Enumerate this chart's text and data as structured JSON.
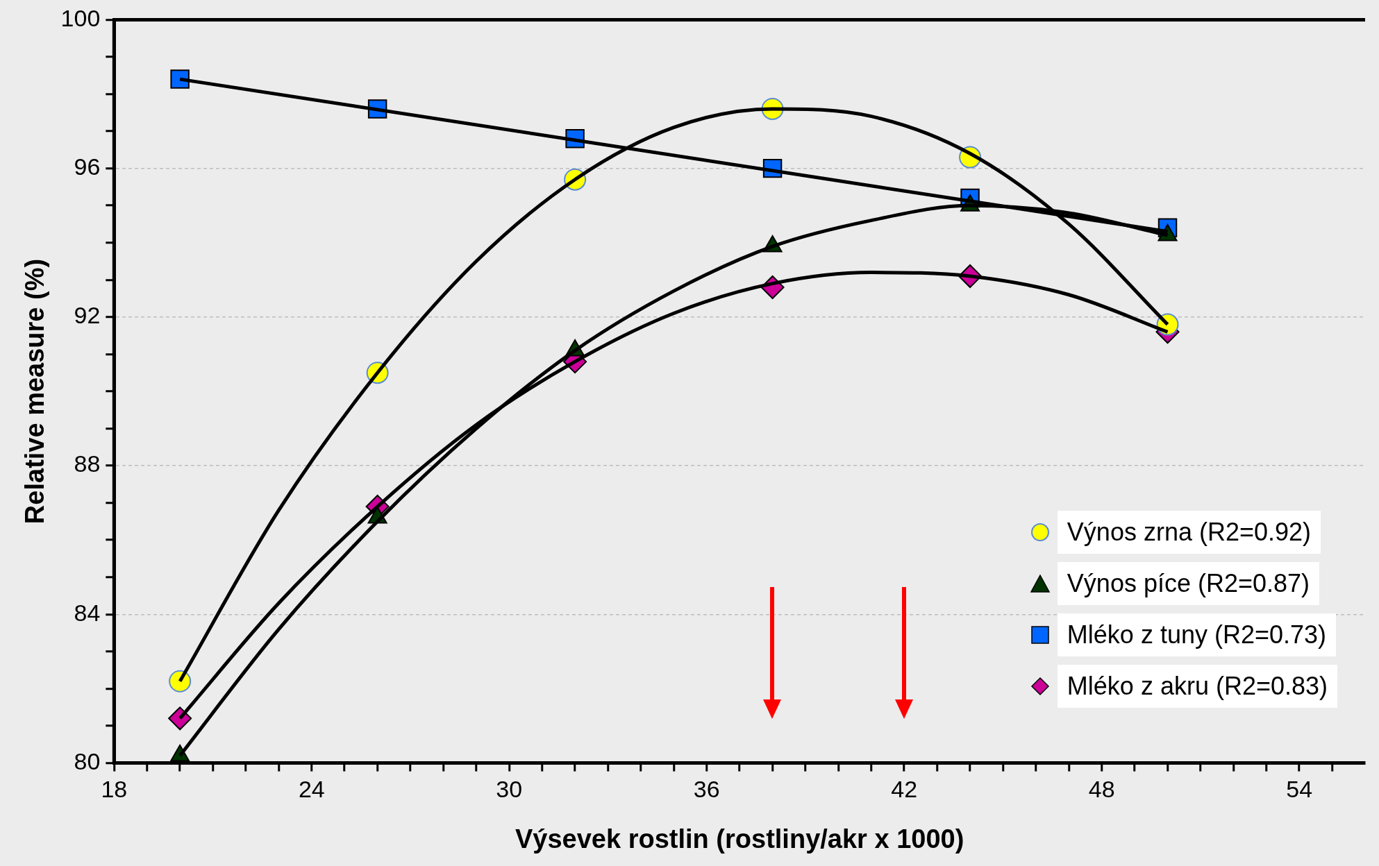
{
  "chart_data": {
    "type": "scatter",
    "xlabel": "Výsevek rostlin (rostliny/akr x 1000)",
    "ylabel": "Relative measure (%)",
    "xlim": [
      18,
      56
    ],
    "xticks": [
      18,
      {
        "value": 19,
        "label": null
      },
      {
        "value": 20,
        "label": null
      },
      {
        "value": 21,
        "label": null
      },
      {
        "value": 22,
        "label": null
      },
      {
        "value": 23,
        "label": null
      },
      24,
      {
        "value": 25,
        "label": null
      },
      {
        "value": 26,
        "label": null
      },
      {
        "value": 27,
        "label": null
      },
      {
        "value": 28,
        "label": null
      },
      {
        "value": 29,
        "label": null
      },
      30,
      {
        "value": 31,
        "label": null
      },
      {
        "value": 32,
        "label": null
      },
      {
        "value": 33,
        "label": null
      },
      {
        "value": 34,
        "label": null
      },
      {
        "value": 35,
        "label": null
      },
      36,
      {
        "value": 37,
        "label": null
      },
      {
        "value": 38,
        "label": null
      },
      {
        "value": 39,
        "label": null
      },
      {
        "value": 40,
        "label": null
      },
      {
        "value": 41,
        "label": null
      },
      42,
      {
        "value": 43,
        "label": null
      },
      {
        "value": 44,
        "label": null
      },
      {
        "value": 45,
        "label": null
      },
      {
        "value": 46,
        "label": null
      },
      {
        "value": 47,
        "label": null
      },
      48,
      {
        "value": 49,
        "label": null
      },
      {
        "value": 50,
        "label": null
      },
      {
        "value": 51,
        "label": null
      },
      {
        "value": 52,
        "label": null
      },
      {
        "value": 53,
        "label": null
      },
      54,
      {
        "value": 55,
        "label": null
      }
    ],
    "ylim": [
      80,
      100
    ],
    "yticks": [
      80,
      {
        "value": 81,
        "label": null
      },
      {
        "value": 82,
        "label": null
      },
      {
        "value": 83,
        "label": null
      },
      84,
      {
        "value": 85,
        "label": null
      },
      {
        "value": 86,
        "label": null
      },
      {
        "value": 87,
        "label": null
      },
      88,
      {
        "value": 89,
        "label": null
      },
      {
        "value": 90,
        "label": null
      },
      {
        "value": 91,
        "label": null
      },
      92,
      {
        "value": 93,
        "label": null
      },
      {
        "value": 94,
        "label": null
      },
      {
        "value": 95,
        "label": null
      },
      96,
      {
        "value": 97,
        "label": null
      },
      {
        "value": 98,
        "label": null
      },
      {
        "value": 99,
        "label": null
      },
      100
    ],
    "grid": "y",
    "legend": "bottom right",
    "x": [
      20,
      26,
      32,
      38,
      44,
      50
    ],
    "series": [
      {
        "name": "Výnos zrna (R2=0.92)",
        "color": "#ffff00",
        "marker": "circle",
        "values": [
          82.2,
          90.5,
          95.7,
          97.6,
          96.3,
          91.8
        ]
      },
      {
        "name": "Výnos píce (R2=0.87)",
        "color": "#003300",
        "marker": "triangle",
        "values": [
          80.2,
          86.6,
          91.1,
          93.9,
          95.0,
          94.2
        ]
      },
      {
        "name": "Mléko z tuny (R2=0.73)",
        "color": "#0066ff",
        "marker": "square",
        "values": [
          98.4,
          97.6,
          96.8,
          96.0,
          95.2,
          94.4
        ]
      },
      {
        "name": "Mléko z akru (R2=0.83)",
        "color": "#cc0099",
        "marker": "diamond",
        "values": [
          81.2,
          86.9,
          90.8,
          92.8,
          93.1,
          91.6
        ]
      },
      {
        "type": "line",
        "color": "#000000",
        "marker": "none",
        "line_style": "solid",
        "x": [
          20,
          23,
          26,
          29,
          32,
          35,
          38,
          41,
          44,
          47,
          50
        ],
        "values": [
          82.2,
          86.8,
          90.5,
          93.5,
          95.7,
          97.1,
          97.6,
          97.4,
          96.4,
          94.5,
          91.8
        ]
      },
      {
        "type": "line",
        "color": "#000000",
        "marker": "none",
        "line_style": "solid",
        "x": [
          20,
          23,
          26,
          29,
          32,
          35,
          38,
          41,
          44,
          47,
          50
        ],
        "values": [
          80.2,
          83.6,
          86.5,
          89.0,
          91.1,
          92.7,
          93.9,
          94.6,
          95.0,
          94.8,
          94.2
        ]
      },
      {
        "type": "line",
        "color": "#000000",
        "marker": "none",
        "line_style": "solid",
        "x": [
          20,
          50
        ],
        "values": [
          98.4,
          94.3
        ]
      },
      {
        "type": "line",
        "color": "#000000",
        "marker": "none",
        "line_style": "solid",
        "x": [
          20,
          23,
          26,
          29,
          32,
          35,
          38,
          41,
          44,
          47,
          50
        ],
        "values": [
          81.2,
          84.3,
          86.9,
          89.1,
          90.8,
          92.1,
          92.9,
          93.2,
          93.1,
          92.6,
          91.6
        ]
      }
    ]
  }
}
